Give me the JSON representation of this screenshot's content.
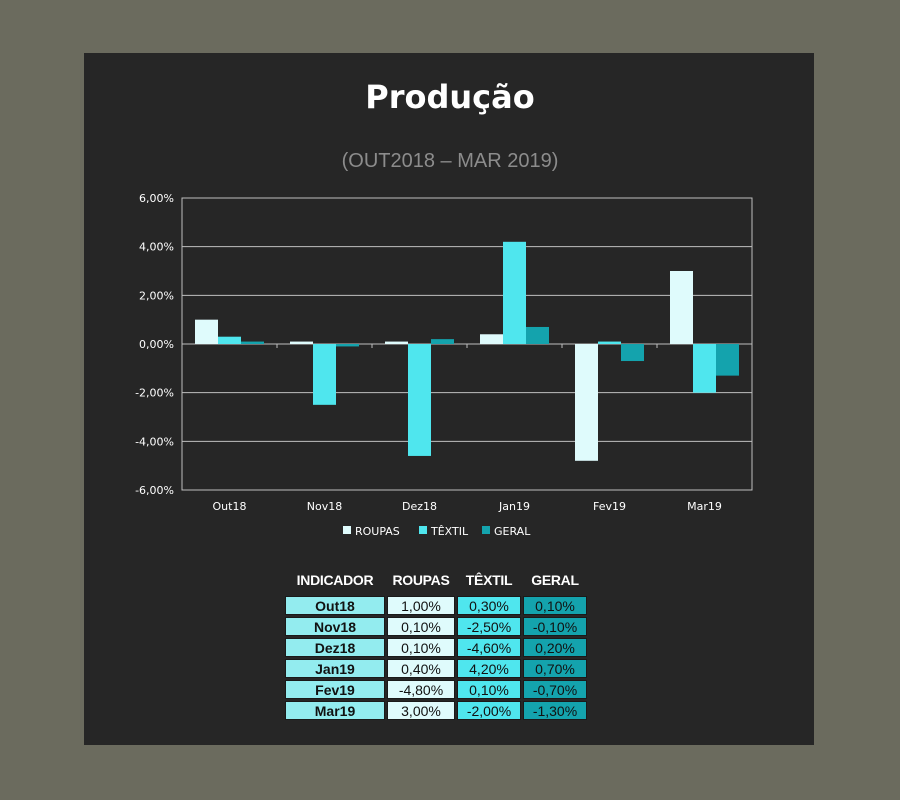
{
  "title": "Produção",
  "subtitle": "(OUT2018 – MAR 2019)",
  "colors": {
    "roupas": "#dffbfc",
    "textil": "#4fe6ee",
    "geral": "#14a3ad",
    "background": "#262626",
    "page": "#6b6b5e"
  },
  "chart_data": {
    "type": "bar",
    "categories": [
      "Out18",
      "Nov18",
      "Dez18",
      "Jan19",
      "Fev19",
      "Mar19"
    ],
    "series": [
      {
        "name": "ROUPAS",
        "values": [
          1.0,
          0.1,
          0.1,
          0.4,
          -4.8,
          3.0
        ]
      },
      {
        "name": "TÊXTIL",
        "values": [
          0.3,
          -2.5,
          -4.6,
          4.2,
          0.1,
          -2.0
        ]
      },
      {
        "name": "GERAL",
        "values": [
          0.1,
          -0.1,
          0.2,
          0.7,
          -0.7,
          -1.3
        ]
      }
    ],
    "ylim": [
      -6,
      6
    ],
    "yticks": [
      6,
      4,
      2,
      0,
      -2,
      -4,
      -6
    ],
    "ytick_labels": [
      "6,00%",
      "4,00%",
      "2,00%",
      "0,00%",
      "-2,00%",
      "-4,00%",
      "-6,00%"
    ],
    "grid": true,
    "legend_position": "bottom"
  },
  "table": {
    "headers": [
      "INDICADOR",
      "ROUPAS",
      "TÊXTIL",
      "GERAL"
    ],
    "rows": [
      [
        "Out18",
        "1,00%",
        "0,30%",
        "0,10%"
      ],
      [
        "Nov18",
        "0,10%",
        "-2,50%",
        "-0,10%"
      ],
      [
        "Dez18",
        "0,10%",
        "-4,60%",
        "0,20%"
      ],
      [
        "Jan19",
        "0,40%",
        "4,20%",
        "0,70%"
      ],
      [
        "Fev19",
        "-4,80%",
        "0,10%",
        "-0,70%"
      ],
      [
        "Mar19",
        "3,00%",
        "-2,00%",
        "-1,30%"
      ]
    ]
  }
}
